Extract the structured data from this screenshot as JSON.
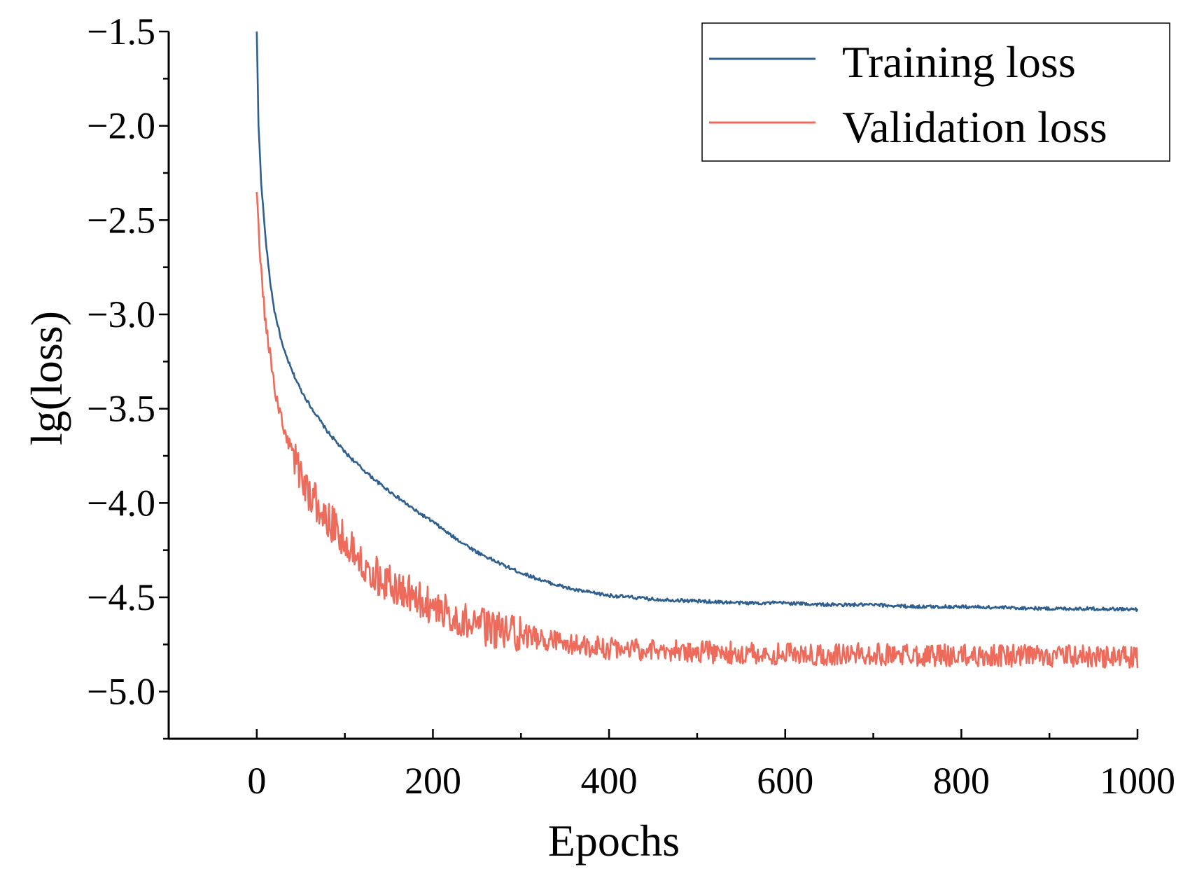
{
  "chart_data": {
    "type": "line",
    "title": "",
    "xlabel": "Epochs",
    "ylabel": "lg(loss)",
    "xlim": [
      -100,
      1000
    ],
    "ylim": [
      -5.25,
      -1.5
    ],
    "xticks": [
      0,
      200,
      400,
      600,
      800,
      1000
    ],
    "xtick_labels": [
      "0",
      "200",
      "400",
      "600",
      "800",
      "1000"
    ],
    "yticks": [
      -1.5,
      -2.0,
      -2.5,
      -3.0,
      -3.5,
      -4.0,
      -4.5,
      -5.0
    ],
    "ytick_labels": [
      "−1.5",
      "−2.0",
      "−2.5",
      "−3.0",
      "−3.5",
      "−4.0",
      "−4.5",
      "−5.0"
    ],
    "grid": false,
    "legend_position": "top-right",
    "series": [
      {
        "name": "Training loss",
        "color": "#2f5f8f",
        "x": [
          0,
          2,
          5,
          10,
          15,
          20,
          30,
          40,
          50,
          60,
          70,
          80,
          100,
          120,
          140,
          160,
          180,
          200,
          220,
          250,
          280,
          300,
          330,
          360,
          400,
          450,
          500,
          550,
          600,
          650,
          700,
          750,
          800,
          850,
          900,
          950,
          1000
        ],
        "values": [
          -1.5,
          -2.0,
          -2.3,
          -2.6,
          -2.82,
          -2.98,
          -3.18,
          -3.3,
          -3.4,
          -3.48,
          -3.55,
          -3.62,
          -3.73,
          -3.82,
          -3.9,
          -3.97,
          -4.04,
          -4.1,
          -4.17,
          -4.26,
          -4.33,
          -4.37,
          -4.42,
          -4.46,
          -4.49,
          -4.51,
          -4.52,
          -4.53,
          -4.53,
          -4.54,
          -4.54,
          -4.55,
          -4.55,
          -4.555,
          -4.56,
          -4.56,
          -4.565
        ]
      },
      {
        "name": "Validation loss",
        "color": "#ee6a5a",
        "x": [
          0,
          3,
          6,
          10,
          15,
          20,
          30,
          40,
          50,
          60,
          70,
          80,
          100,
          120,
          140,
          160,
          180,
          200,
          250,
          300,
          350,
          400,
          450,
          500,
          600,
          700,
          800,
          900,
          1000
        ],
        "values": [
          -2.35,
          -2.6,
          -2.85,
          -3.05,
          -3.2,
          -3.4,
          -3.6,
          -3.72,
          -3.85,
          -3.95,
          -4.02,
          -4.08,
          -4.2,
          -4.3,
          -4.4,
          -4.45,
          -4.5,
          -4.55,
          -4.65,
          -4.7,
          -4.75,
          -4.77,
          -4.78,
          -4.79,
          -4.8,
          -4.8,
          -4.81,
          -4.81,
          -4.82
        ]
      }
    ]
  }
}
